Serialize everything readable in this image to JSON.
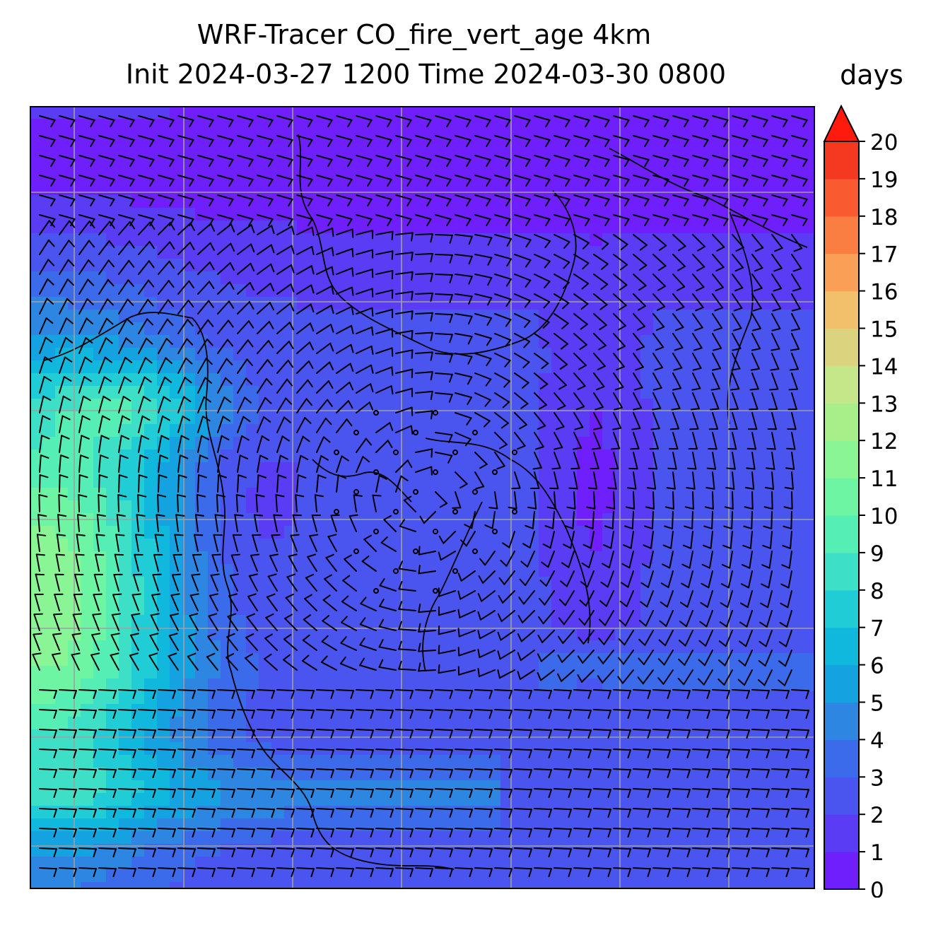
{
  "title_line1": "WRF-Tracer CO_fire_vert_age 4km",
  "title_line2": "Init 2024-03-27 1200 Time 2024-03-30 0800",
  "colorbar": {
    "units": "days",
    "min": 0,
    "max": 20,
    "extend": "max",
    "ticks": [
      "0",
      "1",
      "2",
      "3",
      "4",
      "5",
      "6",
      "7",
      "8",
      "9",
      "10",
      "11",
      "12",
      "13",
      "14",
      "15",
      "16",
      "17",
      "18",
      "19",
      "20"
    ],
    "colors": [
      "#6f1ffb",
      "#5a3cf5",
      "#4a55ef",
      "#3b6aea",
      "#2d86e2",
      "#15a2e0",
      "#0fb8dc",
      "#20ccd6",
      "#3de0c6",
      "#55eeb4",
      "#6ef5a3",
      "#8af594",
      "#a8ef8a",
      "#c6e68a",
      "#dcd37e",
      "#f2bf6a",
      "#faa056",
      "#fa7e42",
      "#fa5a30",
      "#f53820",
      "#ff1a0e"
    ],
    "extend_color": "#ff1a0e"
  },
  "map": {
    "background_color": "#4a55ef",
    "gridlines": true,
    "wind_barbs": true,
    "features": [
      "coastlines",
      "state-borders",
      "country-borders"
    ]
  }
}
